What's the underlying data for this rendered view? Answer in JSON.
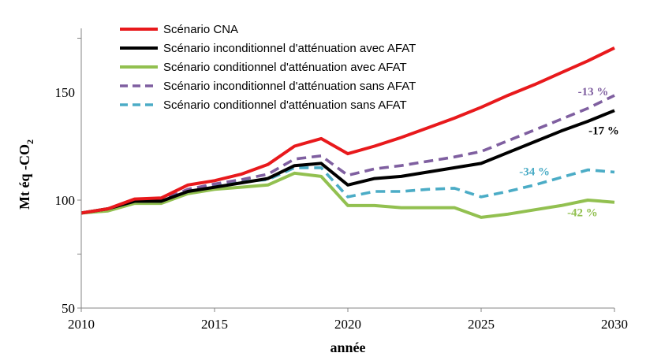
{
  "chart_data": {
    "type": "line",
    "xlabel": "année",
    "ylabel": "Mt éq -CO",
    "ylabel_sub": "2",
    "xlim": [
      2010,
      2030
    ],
    "ylim": [
      50,
      175
    ],
    "xticks": [
      2010,
      2015,
      2020,
      2025,
      2030
    ],
    "yticks": [
      50,
      100,
      150
    ],
    "grid": false,
    "legend_position": "top-left",
    "series": [
      {
        "name": "Scénario CNA",
        "color": "#e8191c",
        "dash": "solid",
        "x": [
          2010,
          2011,
          2012,
          2013,
          2014,
          2015,
          2016,
          2017,
          2018,
          2019,
          2020,
          2021,
          2022,
          2023,
          2024,
          2025,
          2026,
          2027,
          2028,
          2029,
          2030
        ],
        "y": [
          94,
          96,
          100.5,
          101,
          107,
          109,
          112,
          116.5,
          125,
          128.5,
          121.5,
          125,
          129,
          133.5,
          138,
          143,
          148.5,
          153.5,
          159,
          164.5,
          170.5
        ]
      },
      {
        "name": "Scénario inconditionnel d'atténuation avec AFAT",
        "color": "#000000",
        "dash": "solid",
        "x": [
          2010,
          2011,
          2012,
          2013,
          2014,
          2015,
          2016,
          2017,
          2018,
          2019,
          2020,
          2021,
          2022,
          2023,
          2024,
          2025,
          2026,
          2027,
          2028,
          2029,
          2030
        ],
        "y": [
          94,
          96,
          99.5,
          99.5,
          104,
          106,
          108,
          110,
          116,
          117,
          107,
          110,
          111,
          113,
          115,
          117,
          122,
          127,
          132,
          136.5,
          141.5
        ]
      },
      {
        "name": "Scénario conditionnel d'atténuation avec AFAT",
        "color": "#92c050",
        "dash": "solid",
        "x": [
          2010,
          2011,
          2012,
          2013,
          2014,
          2015,
          2016,
          2017,
          2018,
          2019,
          2020,
          2021,
          2022,
          2023,
          2024,
          2025,
          2026,
          2027,
          2028,
          2029,
          2030
        ],
        "y": [
          94,
          95,
          98.5,
          98.5,
          103,
          105,
          106,
          107,
          112.5,
          111,
          97.5,
          97.5,
          96.5,
          96.5,
          96.5,
          92,
          93.5,
          95.5,
          97.5,
          100,
          99
        ]
      },
      {
        "name": "Scénario inconditionnel d'atténuation sans AFAT",
        "color": "#7f5fa0",
        "dash": "dashed",
        "x": [
          2010,
          2011,
          2012,
          2013,
          2014,
          2015,
          2016,
          2017,
          2018,
          2019,
          2020,
          2021,
          2022,
          2023,
          2024,
          2025,
          2026,
          2027,
          2028,
          2029,
          2030
        ],
        "y": [
          94,
          96,
          100,
          100,
          105,
          107.5,
          109.5,
          112,
          119,
          120.5,
          111.5,
          114.5,
          116,
          118,
          120,
          122.5,
          127.5,
          132.5,
          137.5,
          142.5,
          148.5
        ]
      },
      {
        "name": "Scénario conditionnel d'atténuation sans AFAT",
        "color": "#4bacc6",
        "dash": "dashed",
        "x": [
          2010,
          2011,
          2012,
          2013,
          2014,
          2015,
          2016,
          2017,
          2018,
          2019,
          2020,
          2021,
          2022,
          2023,
          2024,
          2025,
          2026,
          2027,
          2028,
          2029,
          2030
        ],
        "y": [
          94,
          96,
          99.5,
          99.5,
          104.5,
          107,
          108.5,
          109.5,
          115,
          115,
          101.5,
          104,
          104,
          105,
          105.5,
          101.5,
          104,
          107,
          110.5,
          114,
          113
        ]
      }
    ],
    "annotations": [
      {
        "text": "-13 %",
        "color": "#7f5fa0",
        "x": 2029.2,
        "y": 148.5
      },
      {
        "text": "-17 %",
        "color": "#000000",
        "x": 2029.6,
        "y": 130.5
      },
      {
        "text": "-34 %",
        "color": "#4bacc6",
        "x": 2027.0,
        "y": 111.5
      },
      {
        "text": "-42 %",
        "color": "#92c050",
        "x": 2028.8,
        "y": 92.5
      }
    ]
  }
}
